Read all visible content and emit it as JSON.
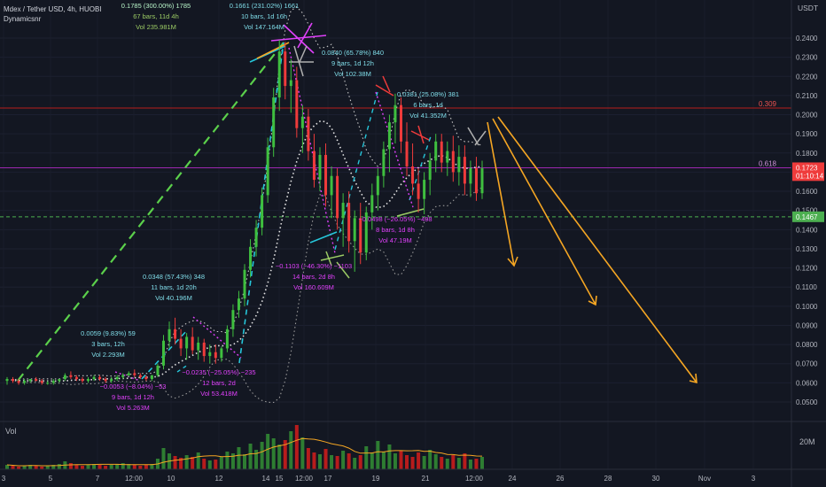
{
  "header": {
    "symbol_line": "Mdex / Tether USD, 4h, HUOBI",
    "author": "Dynamicsnr",
    "currency": "USDT"
  },
  "colors": {
    "bg": "#131722",
    "grid": "#1e2230",
    "up": "#26a69a",
    "up_candle": "#3fbf3f",
    "down": "#ef3b3b",
    "text": "#b2b5be",
    "cyan": "#26c6da",
    "green_dash": "#5bd04b",
    "magenta": "#e040fb",
    "orange": "#f5a623",
    "white_dot": "#e6e6e6"
  },
  "chart_data": {
    "type": "candlestick",
    "y_axis": {
      "min": 0.045,
      "max": 0.255,
      "ticks": [
        "0.2400",
        "0.2300",
        "0.2200",
        "0.2100",
        "0.2000",
        "0.1900",
        "0.1800",
        "0.1700",
        "0.1600",
        "0.1500",
        "0.1400",
        "0.1300",
        "0.1200",
        "0.1100",
        "0.1000",
        "0.0900",
        "0.0800",
        "0.0700",
        "0.0600",
        "0.0500"
      ]
    },
    "x_ticks": [
      "3",
      "5",
      "7",
      "12:00",
      "10",
      "12",
      "14",
      "15",
      "12:00",
      "17",
      "19",
      "21",
      "12:00",
      "24",
      "26",
      "28",
      "30",
      "Nov",
      "3"
    ],
    "price_labels": [
      {
        "text": "0.1723",
        "value": 0.1723,
        "color": "#ef3b3b"
      },
      {
        "text": "01:10:14",
        "value": 0.1682,
        "color": "#ef3b3b"
      },
      {
        "text": "0.1467",
        "value": 0.1467,
        "color": "#4caf50"
      }
    ],
    "levels": [
      {
        "label": "0.309",
        "value": 0.2035,
        "color": "#b71c1c"
      },
      {
        "label": "0.618",
        "value": 0.1723,
        "color": "#9c27b0"
      },
      {
        "label": "",
        "value": 0.1467,
        "color": "#4caf50"
      }
    ],
    "candles": [
      [
        0.061,
        0.063,
        0.059,
        0.062
      ],
      [
        0.062,
        0.063,
        0.06,
        0.061
      ],
      [
        0.061,
        0.062,
        0.059,
        0.06
      ],
      [
        0.06,
        0.062,
        0.059,
        0.061
      ],
      [
        0.061,
        0.062,
        0.06,
        0.062
      ],
      [
        0.062,
        0.063,
        0.061,
        0.061
      ],
      [
        0.061,
        0.062,
        0.059,
        0.06
      ],
      [
        0.06,
        0.061,
        0.059,
        0.06
      ],
      [
        0.06,
        0.062,
        0.059,
        0.061
      ],
      [
        0.061,
        0.062,
        0.06,
        0.062
      ],
      [
        0.062,
        0.065,
        0.061,
        0.064
      ],
      [
        0.064,
        0.066,
        0.062,
        0.063
      ],
      [
        0.063,
        0.064,
        0.061,
        0.062
      ],
      [
        0.062,
        0.063,
        0.06,
        0.061
      ],
      [
        0.061,
        0.063,
        0.06,
        0.062
      ],
      [
        0.062,
        0.064,
        0.061,
        0.063
      ],
      [
        0.063,
        0.064,
        0.061,
        0.062
      ],
      [
        0.062,
        0.063,
        0.06,
        0.061
      ],
      [
        0.061,
        0.063,
        0.06,
        0.062
      ],
      [
        0.062,
        0.064,
        0.061,
        0.063
      ],
      [
        0.063,
        0.065,
        0.062,
        0.064
      ],
      [
        0.064,
        0.066,
        0.063,
        0.065
      ],
      [
        0.065,
        0.067,
        0.063,
        0.064
      ],
      [
        0.064,
        0.065,
        0.062,
        0.063
      ],
      [
        0.063,
        0.064,
        0.061,
        0.062
      ],
      [
        0.062,
        0.064,
        0.061,
        0.064
      ],
      [
        0.064,
        0.07,
        0.063,
        0.069
      ],
      [
        0.069,
        0.085,
        0.067,
        0.082
      ],
      [
        0.082,
        0.092,
        0.078,
        0.088
      ],
      [
        0.088,
        0.094,
        0.08,
        0.083
      ],
      [
        0.083,
        0.088,
        0.074,
        0.078
      ],
      [
        0.078,
        0.086,
        0.072,
        0.084
      ],
      [
        0.084,
        0.089,
        0.075,
        0.077
      ],
      [
        0.077,
        0.084,
        0.072,
        0.081
      ],
      [
        0.081,
        0.083,
        0.071,
        0.074
      ],
      [
        0.074,
        0.08,
        0.07,
        0.076
      ],
      [
        0.076,
        0.08,
        0.07,
        0.073
      ],
      [
        0.073,
        0.079,
        0.071,
        0.078
      ],
      [
        0.078,
        0.09,
        0.076,
        0.088
      ],
      [
        0.088,
        0.101,
        0.084,
        0.098
      ],
      [
        0.098,
        0.108,
        0.094,
        0.104
      ],
      [
        0.104,
        0.122,
        0.1,
        0.119
      ],
      [
        0.119,
        0.135,
        0.115,
        0.131
      ],
      [
        0.131,
        0.145,
        0.126,
        0.141
      ],
      [
        0.141,
        0.162,
        0.137,
        0.158
      ],
      [
        0.158,
        0.188,
        0.154,
        0.183
      ],
      [
        0.183,
        0.214,
        0.178,
        0.209
      ],
      [
        0.209,
        0.239,
        0.202,
        0.233
      ],
      [
        0.233,
        0.238,
        0.208,
        0.215
      ],
      [
        0.215,
        0.229,
        0.201,
        0.218
      ],
      [
        0.218,
        0.225,
        0.188,
        0.193
      ],
      [
        0.193,
        0.205,
        0.18,
        0.199
      ],
      [
        0.199,
        0.203,
        0.176,
        0.181
      ],
      [
        0.181,
        0.19,
        0.162,
        0.166
      ],
      [
        0.166,
        0.183,
        0.16,
        0.179
      ],
      [
        0.179,
        0.185,
        0.152,
        0.158
      ],
      [
        0.158,
        0.173,
        0.146,
        0.168
      ],
      [
        0.168,
        0.172,
        0.14,
        0.146
      ],
      [
        0.146,
        0.159,
        0.131,
        0.154
      ],
      [
        0.154,
        0.16,
        0.128,
        0.134
      ],
      [
        0.134,
        0.15,
        0.118,
        0.146
      ],
      [
        0.146,
        0.154,
        0.122,
        0.128
      ],
      [
        0.128,
        0.152,
        0.124,
        0.149
      ],
      [
        0.149,
        0.164,
        0.14,
        0.158
      ],
      [
        0.158,
        0.172,
        0.15,
        0.168
      ],
      [
        0.168,
        0.186,
        0.162,
        0.182
      ],
      [
        0.182,
        0.2,
        0.17,
        0.196
      ],
      [
        0.196,
        0.211,
        0.185,
        0.205
      ],
      [
        0.205,
        0.209,
        0.18,
        0.186
      ],
      [
        0.186,
        0.196,
        0.168,
        0.173
      ],
      [
        0.173,
        0.185,
        0.158,
        0.164
      ],
      [
        0.164,
        0.172,
        0.149,
        0.156
      ],
      [
        0.156,
        0.17,
        0.148,
        0.166
      ],
      [
        0.166,
        0.18,
        0.158,
        0.176
      ],
      [
        0.176,
        0.19,
        0.17,
        0.186
      ],
      [
        0.186,
        0.19,
        0.17,
        0.175
      ],
      [
        0.175,
        0.186,
        0.168,
        0.181
      ],
      [
        0.181,
        0.189,
        0.165,
        0.17
      ],
      [
        0.17,
        0.184,
        0.163,
        0.178
      ],
      [
        0.178,
        0.184,
        0.158,
        0.164
      ],
      [
        0.164,
        0.176,
        0.157,
        0.172
      ],
      [
        0.172,
        0.178,
        0.155,
        0.159
      ],
      [
        0.159,
        0.176,
        0.156,
        0.172
      ]
    ],
    "volumes": [
      0.5,
      0.4,
      0.3,
      0.4,
      0.5,
      0.4,
      0.3,
      0.4,
      0.5,
      0.6,
      0.9,
      0.7,
      0.5,
      0.4,
      0.5,
      0.6,
      0.5,
      0.4,
      0.5,
      0.6,
      0.7,
      0.6,
      0.5,
      0.4,
      0.5,
      0.6,
      1.2,
      2.4,
      1.8,
      1.5,
      1.3,
      1.6,
      1.4,
      1.9,
      1.2,
      1.0,
      1.1,
      1.4,
      2.0,
      1.8,
      2.5,
      1.7,
      2.9,
      2.2,
      3.1,
      4.0,
      3.5,
      2.8,
      3.3,
      4.3,
      5.0,
      3.6,
      2.4,
      1.9,
      1.7,
      2.3,
      1.6,
      1.5,
      2.1,
      1.8,
      1.3,
      1.6,
      2.6,
      1.9,
      3.2,
      2.0,
      2.8,
      1.8,
      2.1,
      1.6,
      1.4,
      1.9,
      1.5,
      2.2,
      1.7,
      1.4,
      1.2,
      1.6,
      1.3,
      1.8,
      1.1,
      1.2,
      1.4
    ],
    "volume_axis_label": "20M",
    "volume_label": "Vol"
  },
  "annotations": {
    "a1": [
      "0.1785 (300.00%) 1785",
      "67 bars, 11d 4h",
      "Vol 235.981M"
    ],
    "a2": [
      "0.1661 (231.02%) 1661",
      "10 bars, 1d 16h",
      "Vol 147.164M"
    ],
    "a3": [
      "0.0840 (65.78%) 840",
      "9 bars, 1d 12h",
      "Vol 102.38M"
    ],
    "a4": [
      "0.0381 (25.08%) 381",
      "6 bars, 1d",
      "Vol 41.352M"
    ],
    "a5": [
      "0.0348 (57.43%) 348",
      "11 bars, 1d 20h",
      "Vol 40.196M"
    ],
    "a6": [
      "0.0059 (9.83%) 59",
      "3 bars, 12h",
      "Vol 2.293M"
    ],
    "a7": [
      "−0.0053 (−8.04%) −53",
      "9 bars, 1d 12h",
      "Vol 5.263M"
    ],
    "a8": [
      "−0.0235 (−25.05%) −235",
      "12 bars, 2d",
      "Vol 53.418M"
    ],
    "a9": [
      "−0.1103 (−46.30%) −1103",
      "14 bars, 2d 8h",
      "Vol 160.609M"
    ],
    "a10": [
      "−0.0498 (−26.05%) −498",
      "8 bars, 1d 8h",
      "Vol 47.19M"
    ]
  }
}
